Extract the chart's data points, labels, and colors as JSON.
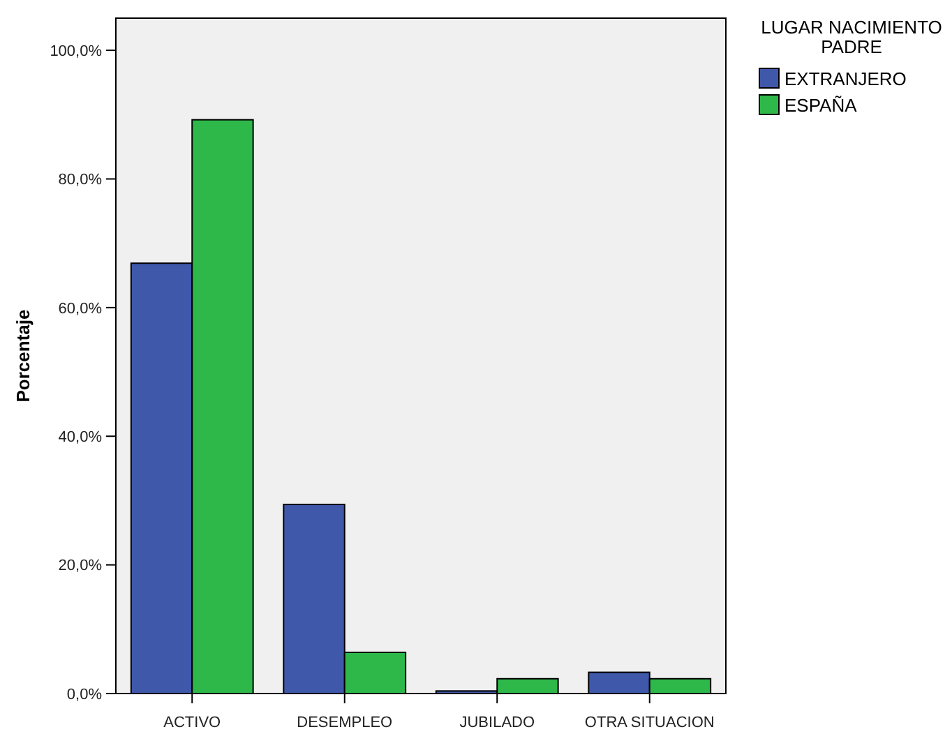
{
  "chart_data": {
    "type": "bar",
    "ylabel": "Porcentaje",
    "legend_title": "LUGAR NACIMIENTO PADRE",
    "categories": [
      "ACTIVO",
      "DESEMPLEO",
      "JUBILADO",
      "OTRA SITUACION"
    ],
    "series": [
      {
        "name": "EXTRANJERO",
        "color": "#3f58aa",
        "values": [
          66.9,
          29.4,
          0.4,
          3.3
        ]
      },
      {
        "name": "ESPAÑA",
        "color": "#2fb84a",
        "values": [
          89.2,
          6.4,
          2.3,
          2.3
        ]
      }
    ],
    "ylim": [
      0,
      105
    ],
    "yticks": [
      {
        "value": 0,
        "label": "0,0%"
      },
      {
        "value": 20,
        "label": "20,0%"
      },
      {
        "value": 40,
        "label": "40,0%"
      },
      {
        "value": 60,
        "label": "60,0%"
      },
      {
        "value": 80,
        "label": "80,0%"
      },
      {
        "value": 100,
        "label": "100,0%"
      }
    ],
    "grid": false,
    "legend": "top right"
  }
}
